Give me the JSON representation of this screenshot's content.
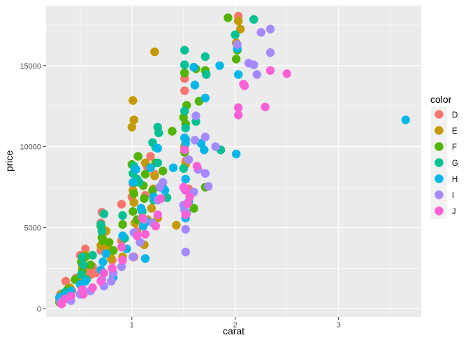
{
  "chart_data": {
    "type": "scatter",
    "xlabel": "carat",
    "ylabel": "price",
    "xlim": [
      0.17,
      3.8
    ],
    "ylim": [
      -500,
      18700
    ],
    "x_ticks": [
      1,
      2,
      3
    ],
    "x_tick_labels": [
      "1",
      "2",
      "3"
    ],
    "y_ticks": [
      0,
      5000,
      10000,
      15000
    ],
    "y_tick_labels": [
      "0",
      "5000",
      "10000",
      "15000"
    ],
    "x_minor": [
      0.5,
      1.5,
      2.5,
      3.5
    ],
    "y_minor": [
      2500,
      7500,
      12500,
      17500
    ],
    "panel_background": "#ebebeb",
    "grid": true,
    "legend": {
      "title": "color",
      "position": "right",
      "entries": [
        {
          "label": "D",
          "color": "#F8766D"
        },
        {
          "label": "E",
          "color": "#C49A00"
        },
        {
          "label": "F",
          "color": "#53B400"
        },
        {
          "label": "G",
          "color": "#00C094"
        },
        {
          "label": "H",
          "color": "#00B6EB"
        },
        {
          "label": "I",
          "color": "#A58AFF"
        },
        {
          "label": "J",
          "color": "#FB61D7"
        }
      ]
    },
    "series": [
      {
        "name": "D",
        "color": "#F8766D",
        "x": [
          2.03,
          1.51,
          1.51,
          1.22,
          1.13,
          1.18,
          1.01,
          1.0,
          0.9,
          0.71,
          0.7,
          0.7,
          0.5,
          0.55,
          0.52,
          0.36,
          0.31,
          0.3,
          0.4,
          0.42,
          0.6,
          0.75,
          0.81,
          0.9,
          1.02,
          1.05,
          1.23,
          1.15,
          1.52,
          1.55,
          1.12,
          0.58,
          0.62,
          0.35,
          0.46,
          0.55,
          0.33,
          0.65
        ],
        "y": [
          18050,
          14200,
          13450,
          8300,
          7000,
          9400,
          7700,
          6900,
          6450,
          5950,
          5300,
          3600,
          3300,
          3700,
          2700,
          1700,
          900,
          600,
          1000,
          1100,
          2100,
          3500,
          3000,
          4200,
          3200,
          4800,
          6700,
          8750,
          9100,
          7400,
          5250,
          2500,
          2600,
          700,
          1900,
          3200,
          800,
          2200
        ]
      },
      {
        "name": "E",
        "color": "#C49A00",
        "x": [
          1.22,
          1.01,
          1.02,
          1.0,
          1.51,
          1.52,
          2.03,
          2.05,
          2.01,
          1.43,
          1.22,
          1.13,
          1.02,
          1.03,
          1.15,
          1.12,
          0.91,
          0.71,
          0.72,
          0.77,
          0.8,
          0.55,
          0.52,
          0.54,
          0.32,
          0.31,
          0.7,
          0.75,
          1.01,
          1.04,
          1.21,
          1.19,
          1.25,
          0.92,
          0.6,
          0.4,
          0.33,
          0.5,
          0.71
        ],
        "y": [
          15850,
          12850,
          11650,
          11200,
          10000,
          8900,
          17750,
          17250,
          16400,
          5150,
          8200,
          9000,
          6550,
          5300,
          5500,
          3950,
          3200,
          4800,
          4300,
          3700,
          3100,
          3300,
          2500,
          1900,
          900,
          600,
          3900,
          4800,
          7300,
          7900,
          7400,
          6200,
          5600,
          4400,
          2700,
          1300,
          700,
          1600,
          5000
        ]
      },
      {
        "name": "F",
        "color": "#53B400",
        "x": [
          1.93,
          2.02,
          2.01,
          1.51,
          1.5,
          1.52,
          1.62,
          1.71,
          1.65,
          1.53,
          1.39,
          1.51,
          1.71,
          1.6,
          1.06,
          1.0,
          1.03,
          1.02,
          1.12,
          1.13,
          0.91,
          0.7,
          0.71,
          0.72,
          0.55,
          0.51,
          0.52,
          0.45,
          0.31,
          0.3,
          1.01,
          1.05,
          1.11,
          1.2,
          1.23,
          0.82,
          0.78,
          0.6,
          1.3,
          0.38,
          0.34
        ],
        "y": [
          17950,
          15950,
          15400,
          14550,
          11800,
          11400,
          14800,
          14700,
          12800,
          12550,
          10950,
          9650,
          7500,
          6200,
          9400,
          8900,
          7800,
          7100,
          6800,
          8300,
          5200,
          5100,
          4400,
          4200,
          3200,
          2900,
          2300,
          1800,
          700,
          400,
          6000,
          5500,
          7600,
          7300,
          9000,
          3600,
          4100,
          2700,
          8500,
          1200,
          900
        ]
      },
      {
        "name": "G",
        "color": "#00C094",
        "x": [
          2.0,
          2.18,
          1.51,
          1.51,
          1.52,
          1.71,
          1.72,
          1.52,
          1.62,
          1.25,
          1.26,
          1.2,
          1.23,
          1.25,
          1.01,
          1.02,
          1.05,
          1.07,
          1.21,
          1.3,
          1.34,
          0.91,
          0.73,
          0.7,
          0.71,
          0.52,
          0.53,
          0.51,
          0.3,
          0.35,
          0.31,
          1.51,
          1.86,
          1.5,
          1.1,
          0.93,
          0.56,
          0.62
        ],
        "y": [
          16900,
          17850,
          15950,
          15050,
          11150,
          15550,
          14450,
          10450,
          11550,
          11200,
          10850,
          10250,
          9950,
          9000,
          8350,
          8800,
          8000,
          7800,
          6700,
          7500,
          6850,
          5750,
          5850,
          5200,
          4800,
          3200,
          2700,
          2100,
          700,
          1000,
          500,
          12200,
          9800,
          8650,
          6000,
          4350,
          1800,
          3300
        ]
      },
      {
        "name": "H",
        "color": "#00B6EB",
        "x": [
          3.65,
          1.85,
          2.01,
          2.03,
          1.71,
          1.6,
          1.61,
          1.51,
          1.52,
          1.51,
          1.67,
          1.7,
          1.52,
          1.25,
          1.32,
          1.18,
          1.21,
          1.04,
          1.01,
          1.09,
          1.11,
          1.13,
          0.91,
          0.95,
          0.75,
          0.72,
          0.7,
          0.55,
          0.5,
          0.31,
          0.3,
          0.41,
          0.35,
          1.52,
          1.4,
          2.02,
          1.55,
          1.14,
          0.82
        ],
        "y": [
          11650,
          15000,
          9550,
          14450,
          13000,
          14900,
          13800,
          10550,
          10200,
          7400,
          10200,
          9800,
          5600,
          9900,
          7300,
          8700,
          6900,
          8600,
          7800,
          6200,
          5100,
          3100,
          4500,
          3700,
          3400,
          2900,
          2400,
          1700,
          1500,
          500,
          700,
          1100,
          800,
          8000,
          8700,
          16050,
          6600,
          5400,
          1950
        ]
      },
      {
        "name": "I",
        "color": "#A58AFF",
        "x": [
          2.34,
          2.25,
          2.34,
          2.18,
          2.13,
          2.21,
          2.02,
          2.08,
          1.52,
          1.61,
          1.62,
          1.71,
          1.74,
          1.71,
          1.6,
          1.53,
          1.51,
          1.5,
          1.52,
          1.3,
          1.27,
          1.25,
          1.2,
          1.12,
          1.08,
          1.02,
          1.01,
          0.9,
          0.82,
          0.8,
          0.73,
          0.71,
          0.6,
          0.5,
          0.52,
          0.41,
          0.31,
          1.55,
          1.64,
          1.81
        ],
        "y": [
          17250,
          17050,
          15800,
          15050,
          15150,
          14450,
          16300,
          13850,
          3500,
          10400,
          11900,
          10600,
          7550,
          8350,
          7200,
          5900,
          6100,
          6400,
          4900,
          7800,
          7500,
          6700,
          5300,
          5500,
          4100,
          4700,
          3200,
          2600,
          2200,
          1700,
          1400,
          1800,
          1100,
          900,
          1200,
          500,
          400,
          9200,
          8600,
          10000
        ]
      },
      {
        "name": "J",
        "color": "#FB61D7",
        "x": [
          2.5,
          2.34,
          2.29,
          2.03,
          2.03,
          2.08,
          2.09,
          1.51,
          1.52,
          1.56,
          1.5,
          1.54,
          1.52,
          1.28,
          1.23,
          1.13,
          1.1,
          1.05,
          0.9,
          0.91,
          0.81,
          0.7,
          0.73,
          0.52,
          0.53,
          0.35,
          0.32,
          1.63,
          1.25,
          0.62,
          0.41
        ],
        "y": [
          14500,
          14700,
          12450,
          12400,
          11950,
          13850,
          13750,
          9800,
          7300,
          6900,
          7500,
          6500,
          5800,
          6800,
          5100,
          4600,
          5600,
          4500,
          3800,
          3000,
          2500,
          1700,
          2200,
          1200,
          900,
          600,
          300,
          8800,
          5800,
          1300,
          800
        ]
      }
    ]
  }
}
